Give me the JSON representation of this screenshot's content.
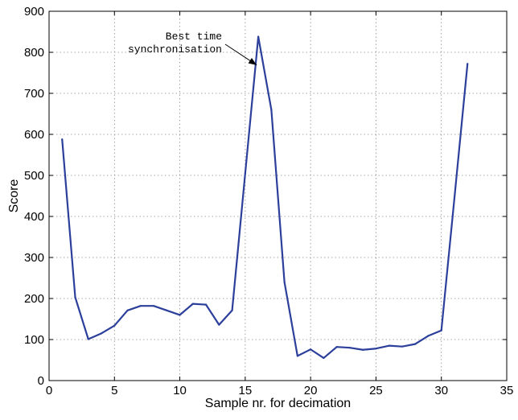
{
  "chart_data": {
    "type": "line",
    "title": "",
    "xlabel": "Sample nr. for decimation",
    "ylabel": "Score",
    "xlim": [
      0,
      35
    ],
    "ylim": [
      0,
      900
    ],
    "xticks": [
      0,
      5,
      10,
      15,
      20,
      25,
      30,
      35
    ],
    "yticks": [
      0,
      100,
      200,
      300,
      400,
      500,
      600,
      700,
      800,
      900
    ],
    "grid": true,
    "series": [
      {
        "color": "#2b3f9b",
        "x": [
          1,
          2,
          3,
          4,
          5,
          6,
          7,
          8,
          9,
          10,
          11,
          12,
          13,
          14,
          15,
          16,
          17,
          18,
          19,
          20,
          21,
          22,
          23,
          24,
          25,
          26,
          27,
          28,
          29,
          30,
          31,
          32
        ],
        "y": [
          588,
          203,
          101,
          115,
          134,
          171,
          182,
          182,
          171,
          160,
          187,
          185,
          136,
          171,
          505,
          838,
          660,
          240,
          60,
          76,
          55,
          82,
          80,
          75,
          78,
          85,
          83,
          89,
          109,
          122,
          445,
          772
        ]
      }
    ],
    "annotations": [
      {
        "lines": [
          "Best time",
          "synchronisation"
        ],
        "point": {
          "x": 16,
          "y": 765
        }
      }
    ]
  }
}
